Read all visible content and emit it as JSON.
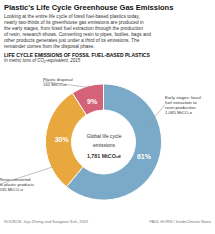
{
  "chart_data": {
    "type": "donut",
    "title": "Plastic's Life Cycle Greenhouse Gas Emissions",
    "subtitle": [
      "Looking at the entire life cycle of fossil fuel-based plastics today,",
      "nearly two-thirds of its greenhouse gas emissions are produced in",
      "the early stages, from fossil fuel extraction through the production",
      "of resin, research shows. Converting resin to pipes, bottles, bags and",
      "other products generates just under a third of its emissions. The",
      "remainder comes from the disposal phase."
    ],
    "section_label": "LIFE CYCLE EMISSIONS OF FOSSIL FUEL-BASED PLASTICS",
    "section_sublabel": "In metric tons of CO₂-equivalent, 2015",
    "center_label": [
      "Global life cycle",
      "emissions",
      "1,781 MtCO₂e"
    ],
    "categories": [
      "Early stages: fossil\nfuel extraction to\nresin production\n1,085 MtCO₂e",
      "Resin converted\nto plastic products\n535 MtCO₂e",
      "Plastic disposal\n161 MtCO₂e"
    ],
    "values": [
      61,
      30,
      9
    ],
    "value_labels": [
      "61%",
      "30%",
      "9%"
    ],
    "data_labels": true,
    "colors": [
      "#7aaac8",
      "#e8a83e",
      "#d4637a"
    ],
    "source": [
      "SOURCE: Juju Zheng and Sangwon Suh, 2019",
      "PAUL HORN / InsideClimate News"
    ]
  }
}
